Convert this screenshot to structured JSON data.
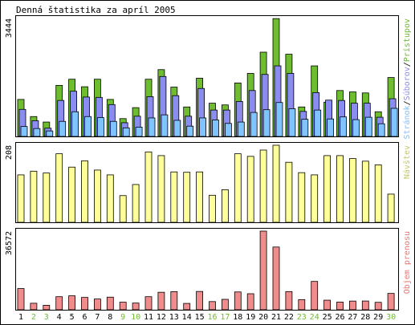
{
  "title": "Denná štatistika za apríl 2005",
  "colors": {
    "border": "#000000",
    "pristupov": "#6dbd2e",
    "suborov": "#8a8cf0",
    "stranok": "#80c4ff",
    "navstev": "#ffff99",
    "prenos": "#f08c8c",
    "weekend_label": "#6dbd2e",
    "weekday_label": "#000000",
    "legend_navstev": "#c8c864",
    "legend_prenos": "#f07070",
    "legend_stranok": "#7fbfff",
    "legend_suborov": "#8a8cf0",
    "legend_pristupov": "#6dbd2e"
  },
  "chart_data": [
    {
      "type": "bar",
      "name": "hits-pages-files",
      "ymax_label": "3444",
      "ylim": [
        0,
        3444
      ],
      "legend": [
        "Stránok",
        "Súborov",
        "Prístupov"
      ],
      "categories": [
        "1",
        "2",
        "3",
        "4",
        "5",
        "6",
        "7",
        "8",
        "9",
        "10",
        "11",
        "12",
        "13",
        "14",
        "15",
        "16",
        "17",
        "18",
        "19",
        "20",
        "21",
        "22",
        "23",
        "24",
        "25",
        "26",
        "27",
        "28",
        "29",
        "30"
      ],
      "series": [
        {
          "name": "Prístupov",
          "values": [
            1080,
            580,
            420,
            1490,
            1670,
            1450,
            1670,
            1080,
            520,
            840,
            1670,
            1950,
            1440,
            860,
            1700,
            970,
            920,
            1560,
            1840,
            2460,
            3440,
            2400,
            860,
            2060,
            1000,
            1340,
            1300,
            1270,
            720,
            1720
          ]
        },
        {
          "name": "Súborov",
          "values": [
            790,
            460,
            240,
            1050,
            1320,
            1150,
            1140,
            930,
            400,
            590,
            1160,
            1750,
            1190,
            590,
            1400,
            770,
            770,
            1020,
            1340,
            1810,
            2060,
            1840,
            730,
            1280,
            1060,
            1050,
            970,
            970,
            560,
            1100
          ]
        },
        {
          "name": "Stránok",
          "values": [
            290,
            230,
            160,
            440,
            720,
            580,
            550,
            440,
            250,
            270,
            540,
            630,
            470,
            300,
            540,
            480,
            380,
            420,
            700,
            780,
            990,
            810,
            500,
            770,
            510,
            570,
            490,
            560,
            370,
            820
          ]
        }
      ]
    },
    {
      "type": "bar",
      "name": "visits",
      "ymax_label": "208",
      "ylim": [
        0,
        208
      ],
      "legend": [
        "Návštev"
      ],
      "categories": [
        "1",
        "2",
        "3",
        "4",
        "5",
        "6",
        "7",
        "8",
        "9",
        "10",
        "11",
        "12",
        "13",
        "14",
        "15",
        "16",
        "17",
        "18",
        "19",
        "20",
        "21",
        "22",
        "23",
        "24",
        "25",
        "26",
        "27",
        "28",
        "29",
        "30"
      ],
      "series": [
        {
          "name": "Návštev",
          "values": [
            128,
            138,
            133,
            185,
            149,
            166,
            141,
            128,
            72,
            102,
            190,
            180,
            136,
            135,
            136,
            73,
            88,
            185,
            178,
            195,
            208,
            162,
            134,
            128,
            180,
            180,
            172,
            165,
            155,
            76
          ]
        }
      ]
    },
    {
      "type": "bar",
      "name": "transfer",
      "ymax_label": "36572",
      "ylim": [
        0,
        36572
      ],
      "legend": [
        "Objem prenosu"
      ],
      "categories": [
        "1",
        "2",
        "3",
        "4",
        "5",
        "6",
        "7",
        "8",
        "9",
        "10",
        "11",
        "12",
        "13",
        "14",
        "15",
        "16",
        "17",
        "18",
        "19",
        "20",
        "21",
        "22",
        "23",
        "24",
        "25",
        "26",
        "27",
        "28",
        "29",
        "30"
      ],
      "series": [
        {
          "name": "Objem prenosu",
          "values": [
            9880,
            3030,
            2080,
            6080,
            6490,
            5740,
            5000,
            5870,
            3530,
            3120,
            6080,
            8140,
            8410,
            2950,
            8520,
            3800,
            4850,
            8290,
            7460,
            36572,
            29180,
            8460,
            4730,
            13180,
            4460,
            3580,
            4040,
            4070,
            3460,
            7600
          ]
        }
      ]
    }
  ],
  "x_labels": [
    {
      "label": "1",
      "weekend": false
    },
    {
      "label": "2",
      "weekend": true
    },
    {
      "label": "3",
      "weekend": true
    },
    {
      "label": "4",
      "weekend": false
    },
    {
      "label": "5",
      "weekend": false
    },
    {
      "label": "6",
      "weekend": false
    },
    {
      "label": "7",
      "weekend": false
    },
    {
      "label": "8",
      "weekend": false
    },
    {
      "label": "9",
      "weekend": true
    },
    {
      "label": "10",
      "weekend": true
    },
    {
      "label": "11",
      "weekend": false
    },
    {
      "label": "12",
      "weekend": false
    },
    {
      "label": "13",
      "weekend": false
    },
    {
      "label": "14",
      "weekend": false
    },
    {
      "label": "15",
      "weekend": false
    },
    {
      "label": "16",
      "weekend": true
    },
    {
      "label": "17",
      "weekend": true
    },
    {
      "label": "18",
      "weekend": false
    },
    {
      "label": "19",
      "weekend": false
    },
    {
      "label": "20",
      "weekend": false
    },
    {
      "label": "21",
      "weekend": false
    },
    {
      "label": "22",
      "weekend": false
    },
    {
      "label": "23",
      "weekend": true
    },
    {
      "label": "24",
      "weekend": true
    },
    {
      "label": "25",
      "weekend": false
    },
    {
      "label": "26",
      "weekend": false
    },
    {
      "label": "27",
      "weekend": false
    },
    {
      "label": "28",
      "weekend": false
    },
    {
      "label": "29",
      "weekend": false
    },
    {
      "label": "30",
      "weekend": true
    }
  ]
}
